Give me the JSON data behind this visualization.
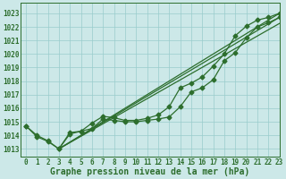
{
  "title": "Graphe pression niveau de la mer (hPa)",
  "background_color": "#cce8e8",
  "grid_color": "#99cccc",
  "line_color": "#2d6e2d",
  "xlim": [
    -0.5,
    23
  ],
  "ylim": [
    1012.4,
    1023.8
  ],
  "yticks": [
    1013,
    1014,
    1015,
    1016,
    1017,
    1018,
    1019,
    1020,
    1021,
    1022,
    1023
  ],
  "xticks": [
    0,
    1,
    2,
    3,
    4,
    5,
    6,
    7,
    8,
    9,
    10,
    11,
    12,
    13,
    14,
    15,
    16,
    17,
    18,
    19,
    20,
    21,
    22,
    23
  ],
  "series_dotted": [
    [
      1014.7,
      1014.0,
      1013.6,
      1013.0,
      1014.2,
      1014.3,
      1014.5,
      1015.2,
      1015.1,
      1015.0,
      1015.0,
      1015.1,
      1015.2,
      1015.35,
      1016.1,
      1017.2,
      1017.5,
      1018.1,
      1019.5,
      1020.1,
      1021.2,
      1022.0,
      1022.3,
      1022.7
    ],
    [
      1014.7,
      1013.9,
      1013.55,
      1013.0,
      1014.1,
      1014.3,
      1014.9,
      1015.4,
      1015.3,
      1015.1,
      1015.1,
      1015.25,
      1015.5,
      1016.1,
      1017.5,
      1017.85,
      1018.3,
      1019.1,
      1020.0,
      1021.35,
      1022.05,
      1022.5,
      1022.7,
      1023.0
    ]
  ],
  "series_straight": [
    [
      [
        3,
        1013.0
      ],
      [
        23,
        1022.25
      ]
    ],
    [
      [
        3,
        1013.0
      ],
      [
        23,
        1022.7
      ]
    ],
    [
      [
        3,
        1013.0
      ],
      [
        23,
        1023.0
      ]
    ]
  ],
  "marker": "D",
  "marker_size": 2.5,
  "linewidth": 0.9,
  "title_fontsize": 7,
  "tick_fontsize": 5.5
}
